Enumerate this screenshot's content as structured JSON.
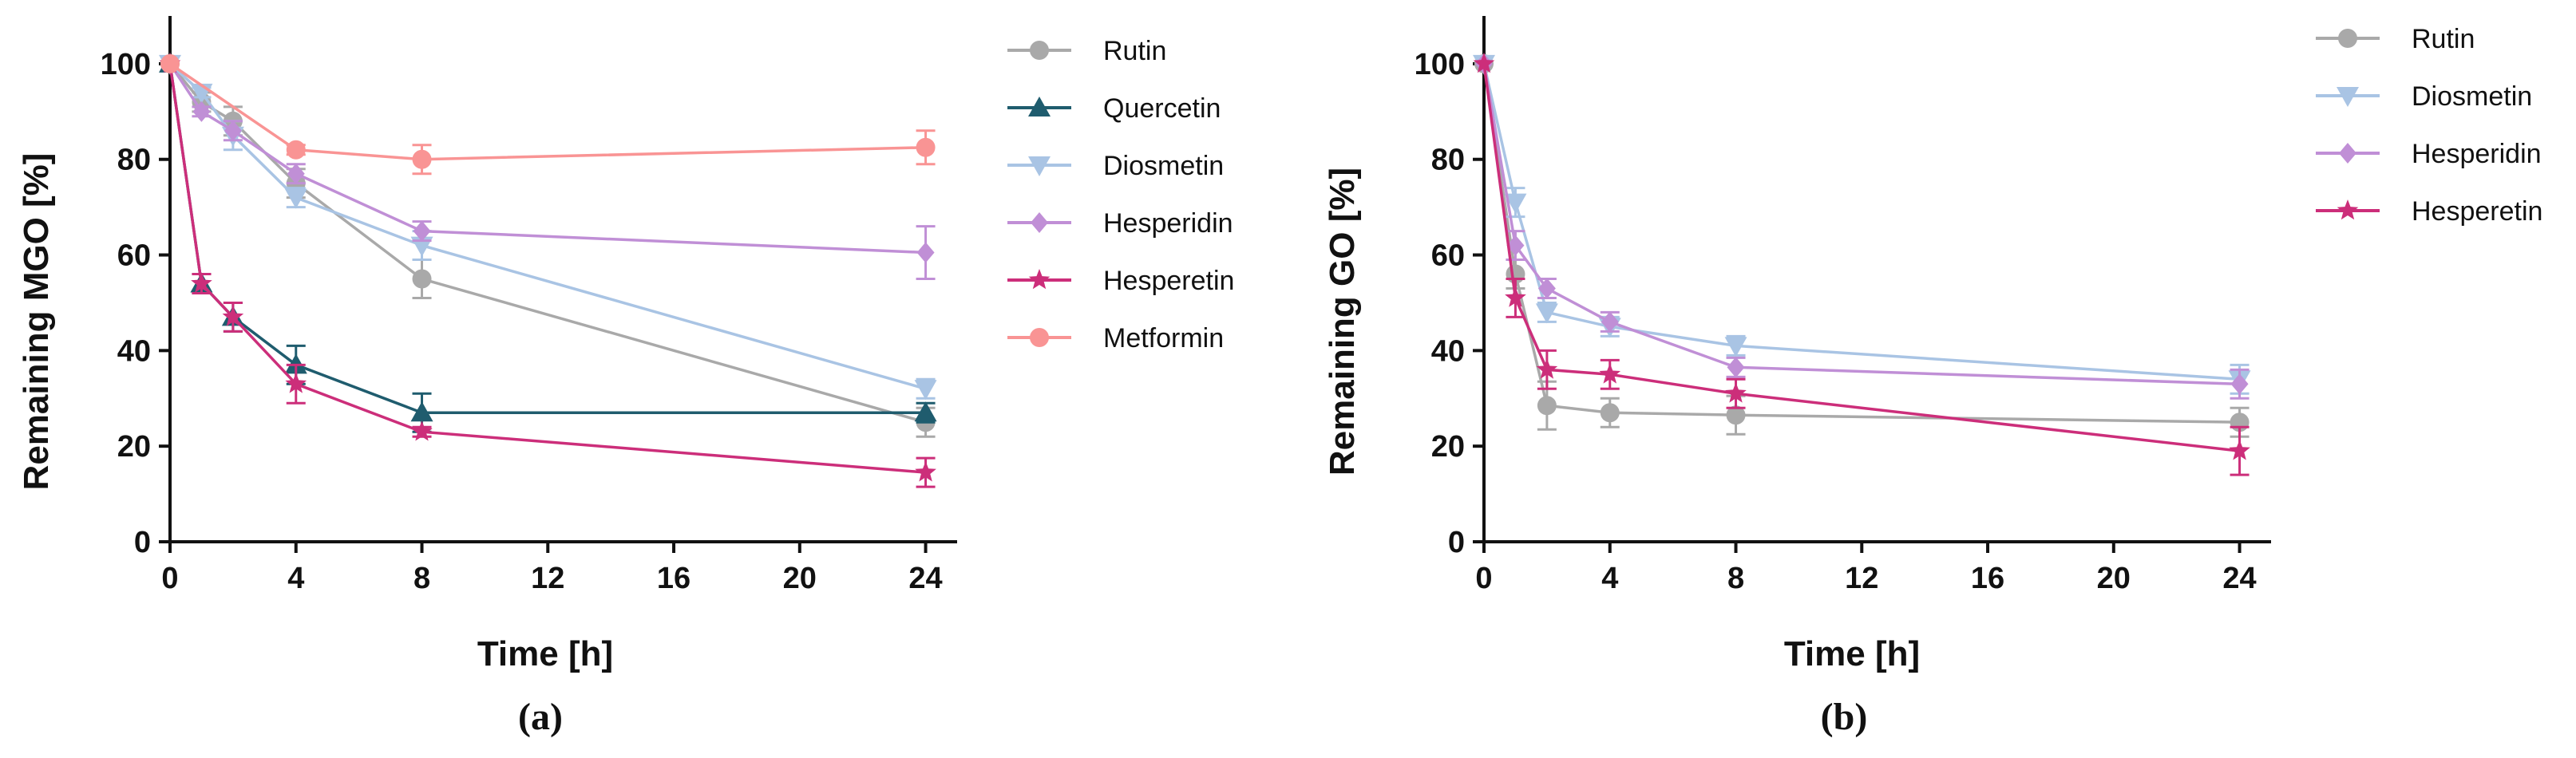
{
  "chart_data": [
    {
      "type": "line",
      "panel_label": "(a)",
      "xlabel": "Time [h]",
      "ylabel": "Remaining MGO [%]",
      "xlim": [
        0,
        25
      ],
      "ylim": [
        0,
        110
      ],
      "xticks": [
        0,
        4,
        8,
        12,
        16,
        20,
        24
      ],
      "yticks": [
        0,
        20,
        40,
        60,
        80,
        100
      ],
      "legend_position": "right",
      "series": [
        {
          "name": "Rutin",
          "color": "#a9a9a9",
          "marker": "circle",
          "x": [
            0,
            1,
            2,
            4,
            8,
            24
          ],
          "y": [
            100,
            92,
            88,
            75,
            55,
            25
          ],
          "err": [
            0,
            2,
            3,
            3,
            4,
            3
          ]
        },
        {
          "name": "Quercetin",
          "color": "#1f5c6e",
          "marker": "triangle-up",
          "x": [
            0,
            1,
            2,
            4,
            8,
            24
          ],
          "y": [
            100,
            54,
            47,
            37,
            27,
            27
          ],
          "err": [
            0,
            2,
            3,
            4,
            4,
            2
          ]
        },
        {
          "name": "Diosmetin",
          "color": "#a9c4e4",
          "marker": "triangle-down",
          "x": [
            0,
            1,
            2,
            4,
            8,
            24
          ],
          "y": [
            100,
            94,
            85,
            72,
            62,
            32
          ],
          "err": [
            0,
            1,
            3,
            2,
            3,
            2
          ]
        },
        {
          "name": "Hesperidin",
          "color": "#c08fd6",
          "marker": "diamond",
          "x": [
            0,
            1,
            2,
            4,
            8,
            24
          ],
          "y": [
            100,
            90,
            86,
            77,
            65,
            60.5
          ],
          "err": [
            0,
            1,
            2,
            2,
            2,
            5.5
          ]
        },
        {
          "name": "Hesperetin",
          "color": "#cc2e7a",
          "marker": "star",
          "x": [
            0,
            1,
            2,
            4,
            8,
            24
          ],
          "y": [
            100,
            54,
            47,
            33,
            23,
            14.5
          ],
          "err": [
            0,
            2,
            3,
            4,
            1,
            3
          ]
        },
        {
          "name": "Metformin",
          "color": "#f99494",
          "marker": "circle",
          "x": [
            0,
            4,
            8,
            24
          ],
          "y": [
            100,
            82,
            80,
            82.5
          ],
          "err": [
            0,
            1,
            3,
            3.5
          ]
        }
      ]
    },
    {
      "type": "line",
      "panel_label": "(b)",
      "xlabel": "Time [h]",
      "ylabel": "Remaining GO [%]",
      "xlim": [
        0,
        25
      ],
      "ylim": [
        0,
        110
      ],
      "xticks": [
        0,
        4,
        8,
        12,
        16,
        20,
        24
      ],
      "yticks": [
        0,
        20,
        40,
        60,
        80,
        100
      ],
      "legend_position": "right",
      "series": [
        {
          "name": "Rutin",
          "color": "#a9a9a9",
          "marker": "circle",
          "x": [
            0,
            1,
            2,
            4,
            8,
            24
          ],
          "y": [
            100,
            56,
            28.5,
            27,
            26.5,
            25
          ],
          "err": [
            0,
            3,
            5,
            3,
            4,
            3
          ]
        },
        {
          "name": "Diosmetin",
          "color": "#a9c4e4",
          "marker": "triangle-down",
          "x": [
            0,
            1,
            2,
            4,
            8,
            24
          ],
          "y": [
            100,
            71,
            48,
            45,
            41,
            34
          ],
          "err": [
            0,
            3,
            2,
            2,
            2,
            3
          ]
        },
        {
          "name": "Hesperidin",
          "color": "#c08fd6",
          "marker": "diamond",
          "x": [
            0,
            1,
            2,
            4,
            8,
            24
          ],
          "y": [
            100,
            62,
            53,
            46,
            36.5,
            33
          ],
          "err": [
            0,
            3,
            2,
            2,
            2,
            3
          ]
        },
        {
          "name": "Hesperetin",
          "color": "#cc2e7a",
          "marker": "star",
          "x": [
            0,
            1,
            2,
            4,
            8,
            24
          ],
          "y": [
            100,
            51,
            36,
            35,
            31,
            19
          ],
          "err": [
            0,
            4,
            4,
            3,
            3,
            5
          ]
        }
      ]
    }
  ]
}
